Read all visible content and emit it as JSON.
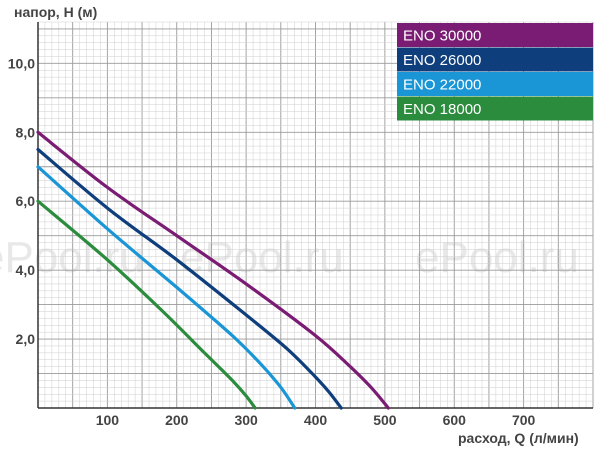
{
  "chart_data": {
    "type": "line",
    "xlabel": "расход, Q (л/мин)",
    "ylabel": "напор, H (м)",
    "xlim": [
      0,
      800
    ],
    "ylim": [
      0,
      11.2
    ],
    "x_ticks": [
      "100",
      "200",
      "300",
      "400",
      "500",
      "600",
      "700"
    ],
    "y_ticks": [
      "2,0",
      "4,0",
      "6,0",
      "8,0",
      "10,0"
    ],
    "grid": true,
    "legend_position": "top-right",
    "watermark": "ePool.ru",
    "series": [
      {
        "name": "ENO 30000",
        "color": "#7b1c74",
        "x": [
          0,
          100,
          200,
          300,
          400,
          450,
          480,
          505
        ],
        "y": [
          8.0,
          6.4,
          5.0,
          3.6,
          2.1,
          1.2,
          0.6,
          0.0
        ]
      },
      {
        "name": "ENO 26000",
        "color": "#0f3e7c",
        "x": [
          0,
          100,
          200,
          300,
          360,
          400,
          420,
          437
        ],
        "y": [
          7.5,
          5.8,
          4.3,
          2.7,
          1.7,
          0.9,
          0.45,
          0.0
        ]
      },
      {
        "name": "ENO 22000",
        "color": "#1a96d6",
        "x": [
          0,
          100,
          200,
          280,
          320,
          350,
          370
        ],
        "y": [
          7.0,
          5.2,
          3.5,
          2.1,
          1.3,
          0.6,
          0.0
        ]
      },
      {
        "name": "ENO 18000",
        "color": "#2b8c3e",
        "x": [
          0,
          100,
          180,
          240,
          280,
          300,
          313
        ],
        "y": [
          6.0,
          4.3,
          2.8,
          1.6,
          0.8,
          0.35,
          0.0
        ]
      }
    ]
  }
}
